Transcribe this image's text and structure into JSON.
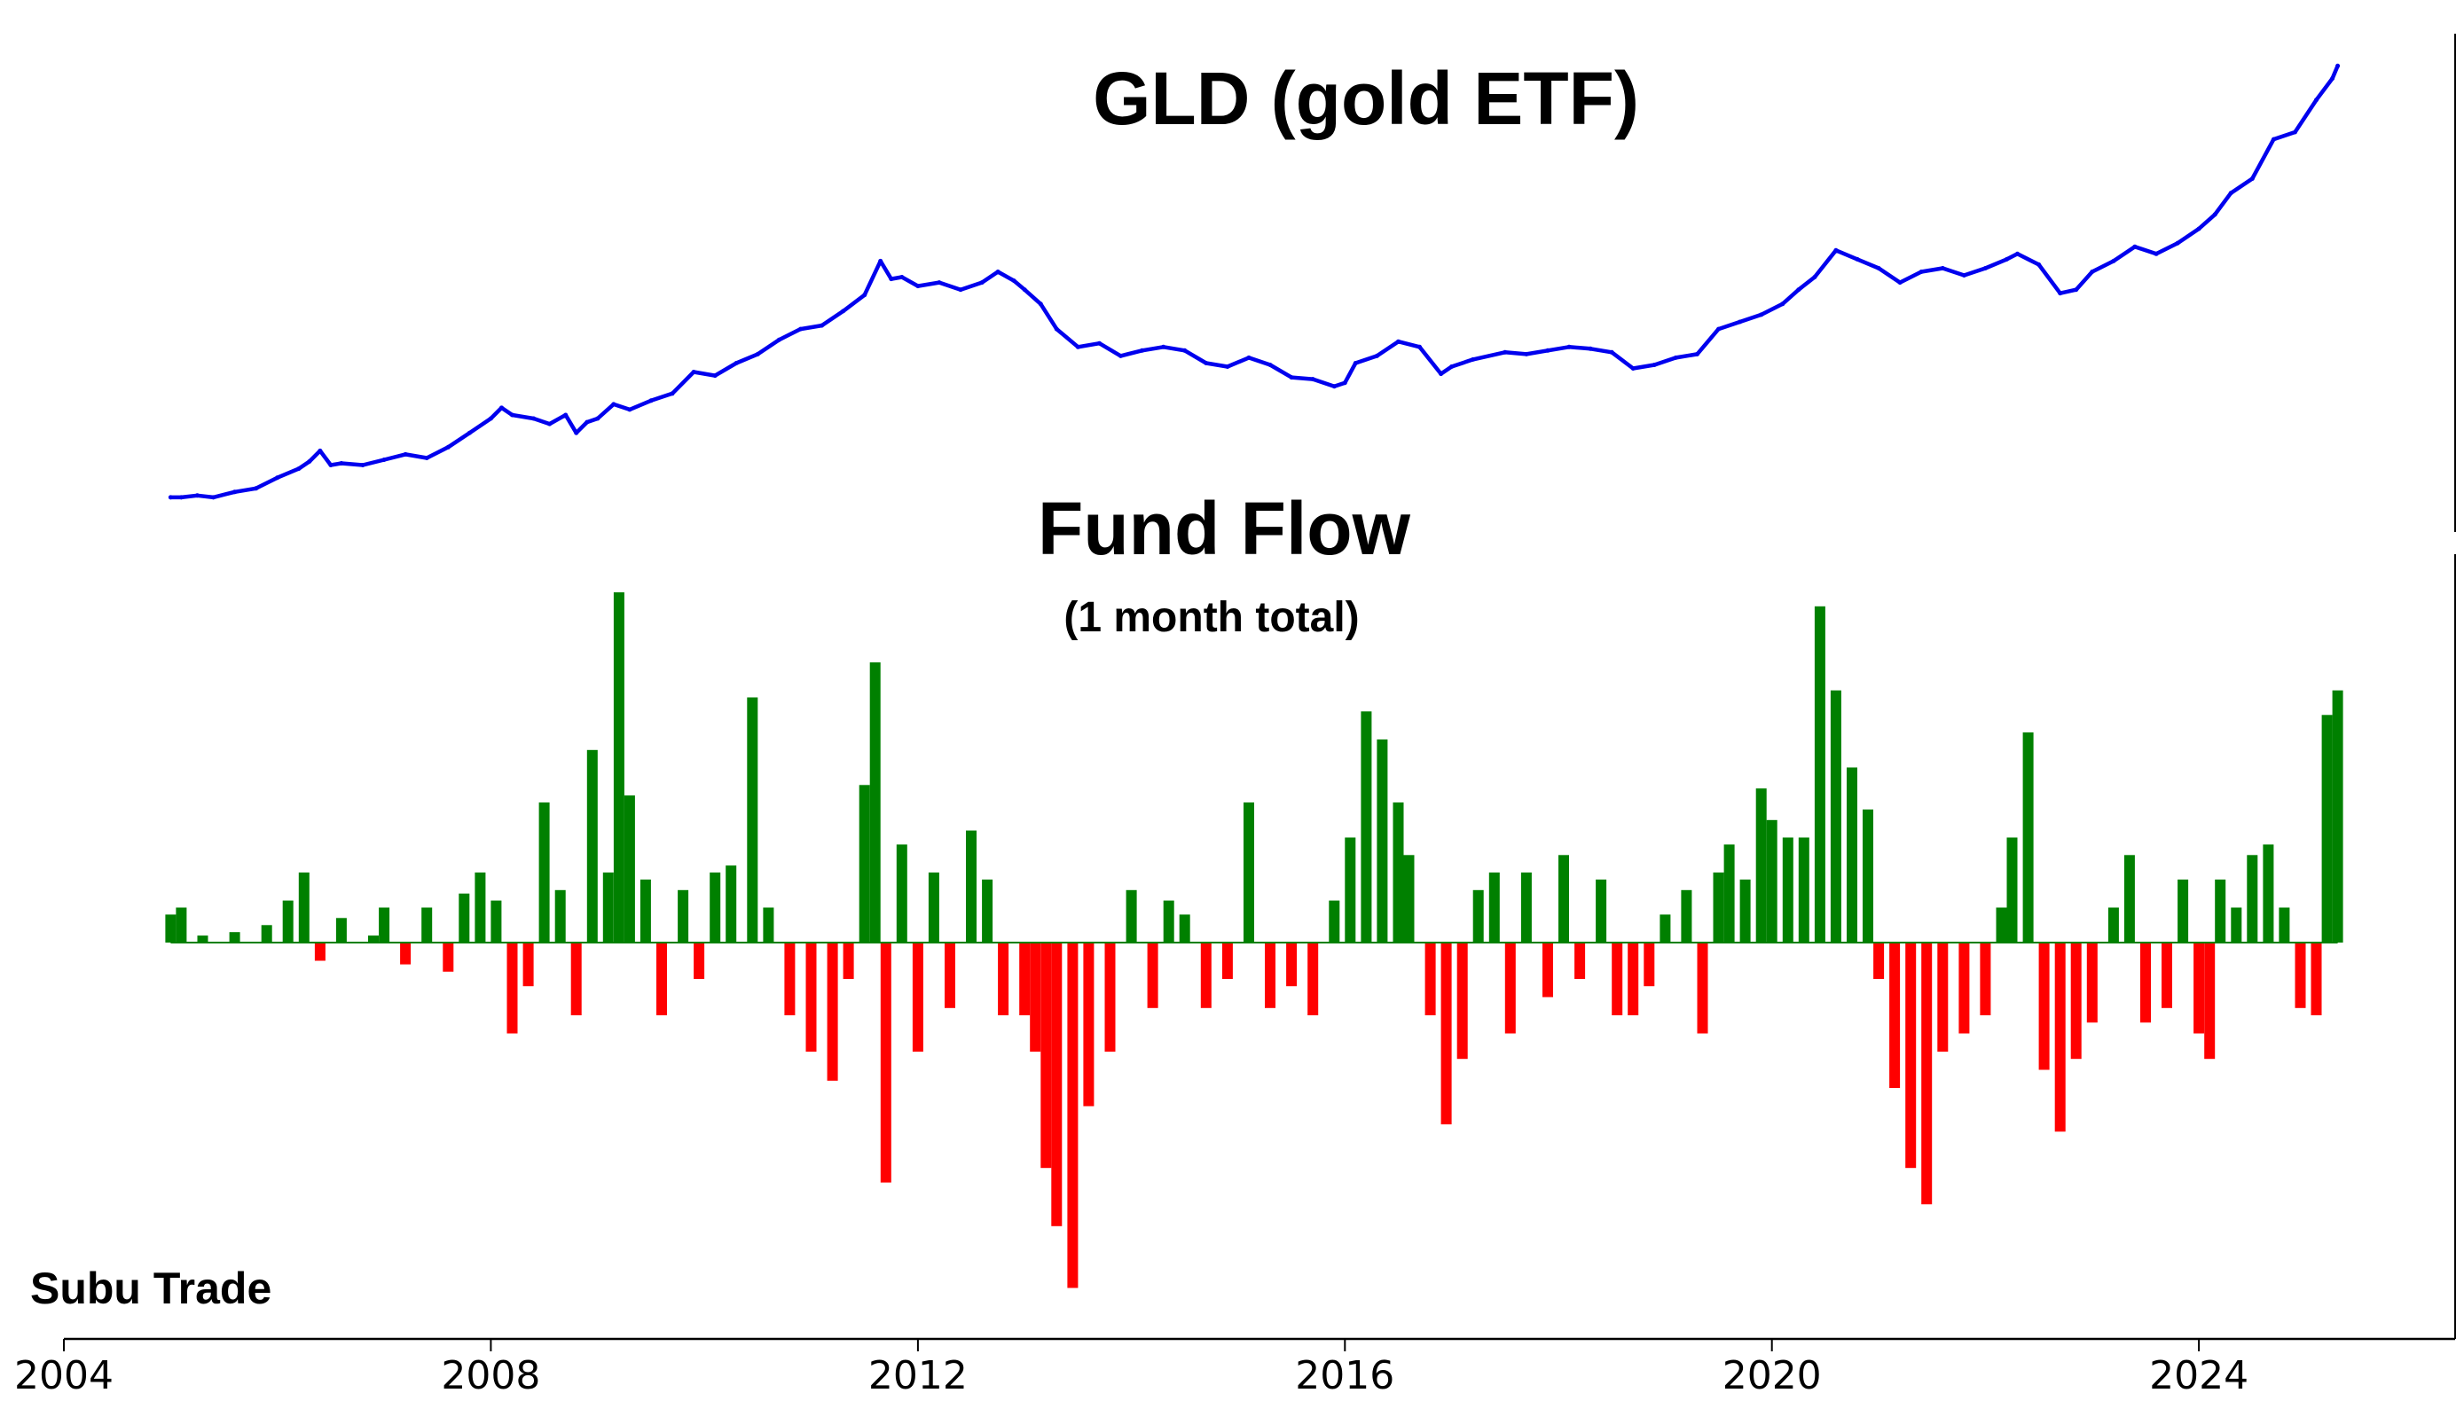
{
  "brand": {
    "label": "Subu Trade"
  },
  "chart_data": [
    {
      "type": "line",
      "title": "GLD (gold ETF)",
      "subtitle": "",
      "xlabel": "",
      "ylabel": "",
      "xlim": [
        2004,
        2026.4
      ],
      "ylim": [
        35,
        300
      ],
      "grid": false,
      "legend": "none",
      "color": "#0000ee",
      "series": [
        {
          "x": [
            2005.0,
            2005.1,
            2005.25,
            2005.4,
            2005.6,
            2005.8,
            2006.0,
            2006.2,
            2006.3,
            2006.4,
            2006.5,
            2006.6,
            2006.8,
            2007.0,
            2007.2,
            2007.4,
            2007.6,
            2007.8,
            2008.0,
            2008.1,
            2008.2,
            2008.4,
            2008.55,
            2008.7,
            2008.8,
            2008.9,
            2009.0,
            2009.15,
            2009.3,
            2009.5,
            2009.7,
            2009.9,
            2010.1,
            2010.3,
            2010.5,
            2010.7,
            2010.9,
            2011.1,
            2011.3,
            2011.5,
            2011.65,
            2011.75,
            2011.85,
            2012.0,
            2012.2,
            2012.4,
            2012.6,
            2012.75,
            2012.9,
            2013.0,
            2013.15,
            2013.3,
            2013.5,
            2013.7,
            2013.9,
            2014.1,
            2014.3,
            2014.5,
            2014.7,
            2014.9,
            2015.1,
            2015.3,
            2015.5,
            2015.7,
            2015.9,
            2016.0,
            2016.1,
            2016.3,
            2016.5,
            2016.7,
            2016.9,
            2017.0,
            2017.2,
            2017.5,
            2017.7,
            2017.9,
            2018.1,
            2018.3,
            2018.5,
            2018.7,
            2018.9,
            2019.1,
            2019.3,
            2019.5,
            2019.7,
            2019.9,
            2020.1,
            2020.25,
            2020.4,
            2020.6,
            2020.8,
            2021.0,
            2021.2,
            2021.4,
            2021.6,
            2021.8,
            2022.0,
            2022.2,
            2022.3,
            2022.5,
            2022.7,
            2022.85,
            2023.0,
            2023.2,
            2023.4,
            2023.6,
            2023.8,
            2024.0,
            2024.15,
            2024.3,
            2024.5,
            2024.7,
            2024.9,
            2025.1,
            2025.25,
            2025.3
          ],
          "y": [
            42,
            42,
            43,
            42,
            45,
            47,
            53,
            58,
            62,
            68,
            60,
            61,
            60,
            63,
            66,
            64,
            70,
            78,
            86,
            92,
            88,
            86,
            83,
            88,
            78,
            84,
            86,
            94,
            91,
            96,
            100,
            112,
            110,
            117,
            122,
            130,
            136,
            138,
            146,
            155,
            174,
            164,
            165,
            160,
            162,
            158,
            162,
            168,
            163,
            158,
            150,
            136,
            126,
            128,
            121,
            124,
            126,
            124,
            117,
            115,
            120,
            116,
            109,
            108,
            104,
            106,
            117,
            121,
            129,
            126,
            111,
            115,
            119,
            123,
            122,
            124,
            126,
            125,
            123,
            114,
            116,
            120,
            122,
            136,
            140,
            144,
            150,
            158,
            165,
            180,
            175,
            170,
            162,
            168,
            170,
            166,
            170,
            175,
            178,
            172,
            156,
            158,
            168,
            174,
            182,
            178,
            184,
            192,
            200,
            212,
            220,
            242,
            246,
            264,
            276,
            283
          ]
        }
      ]
    },
    {
      "type": "bar",
      "title": "Fund Flow",
      "subtitle": "(1 month total)",
      "xlabel": "",
      "ylabel": "",
      "xlim": [
        2004,
        2026.4
      ],
      "xticks": [
        "2004",
        "2008",
        "2012",
        "2016",
        "2020",
        "2024"
      ],
      "ylim": [
        -1.0,
        1.0
      ],
      "grid": false,
      "legend": "none",
      "colors": {
        "positive": "#008000",
        "negative": "#ff0000"
      },
      "series": [
        {
          "x": [
            2005.0,
            2005.1,
            2005.3,
            2005.6,
            2005.9,
            2006.1,
            2006.25,
            2006.4,
            2006.6,
            2006.9,
            2007.0,
            2007.2,
            2007.4,
            2007.6,
            2007.75,
            2007.9,
            2008.05,
            2008.2,
            2008.35,
            2008.5,
            2008.65,
            2008.8,
            2008.95,
            2009.1,
            2009.2,
            2009.3,
            2009.45,
            2009.6,
            2009.8,
            2009.95,
            2010.1,
            2010.25,
            2010.45,
            2010.6,
            2010.8,
            2011.0,
            2011.2,
            2011.35,
            2011.5,
            2011.6,
            2011.7,
            2011.85,
            2012.0,
            2012.15,
            2012.3,
            2012.5,
            2012.65,
            2012.8,
            2013.0,
            2013.1,
            2013.2,
            2013.3,
            2013.45,
            2013.6,
            2013.8,
            2014.0,
            2014.2,
            2014.35,
            2014.5,
            2014.7,
            2014.9,
            2015.1,
            2015.3,
            2015.5,
            2015.7,
            2015.9,
            2016.05,
            2016.2,
            2016.35,
            2016.5,
            2016.6,
            2016.8,
            2016.95,
            2017.1,
            2017.25,
            2017.4,
            2017.55,
            2017.7,
            2017.9,
            2018.05,
            2018.2,
            2018.4,
            2018.55,
            2018.7,
            2018.85,
            2019.0,
            2019.2,
            2019.35,
            2019.5,
            2019.6,
            2019.75,
            2019.9,
            2020.0,
            2020.15,
            2020.3,
            2020.45,
            2020.6,
            2020.75,
            2020.9,
            2021.0,
            2021.15,
            2021.3,
            2021.45,
            2021.6,
            2021.8,
            2022.0,
            2022.15,
            2022.25,
            2022.4,
            2022.55,
            2022.7,
            2022.85,
            2023.0,
            2023.2,
            2023.35,
            2023.5,
            2023.7,
            2023.85,
            2024.0,
            2024.1,
            2024.2,
            2024.35,
            2024.5,
            2024.65,
            2024.8,
            2024.95,
            2025.1,
            2025.2,
            2025.3
          ],
          "values": [
            0.08,
            0.1,
            0.02,
            0.03,
            0.05,
            0.12,
            0.2,
            -0.05,
            0.07,
            0.02,
            0.1,
            -0.06,
            0.1,
            -0.08,
            0.14,
            0.2,
            0.12,
            -0.25,
            -0.12,
            0.4,
            0.15,
            -0.2,
            0.55,
            0.2,
            1.0,
            0.42,
            0.18,
            -0.2,
            0.15,
            -0.1,
            0.2,
            0.22,
            0.7,
            0.1,
            -0.2,
            -0.3,
            -0.38,
            -0.1,
            0.45,
            0.8,
            -0.66,
            0.28,
            -0.3,
            0.2,
            -0.18,
            0.32,
            0.18,
            -0.2,
            -0.2,
            -0.3,
            -0.62,
            -0.78,
            -0.95,
            -0.45,
            -0.3,
            0.15,
            -0.18,
            0.12,
            0.08,
            -0.18,
            -0.1,
            0.4,
            -0.18,
            -0.12,
            -0.2,
            0.12,
            0.3,
            0.66,
            0.58,
            0.4,
            0.25,
            -0.2,
            -0.5,
            -0.32,
            0.15,
            0.2,
            -0.25,
            0.2,
            -0.15,
            0.25,
            -0.1,
            0.18,
            -0.2,
            -0.2,
            -0.12,
            0.08,
            0.15,
            -0.25,
            0.2,
            0.28,
            0.18,
            0.44,
            0.35,
            0.3,
            0.3,
            0.96,
            0.72,
            0.5,
            0.38,
            -0.1,
            -0.4,
            -0.62,
            -0.72,
            -0.3,
            -0.25,
            -0.2,
            0.1,
            0.3,
            0.6,
            -0.35,
            -0.52,
            -0.32,
            -0.22,
            0.1,
            0.25,
            -0.22,
            -0.18,
            0.18,
            -0.25,
            -0.32,
            0.18,
            0.1,
            0.25,
            0.28,
            0.1,
            -0.18,
            -0.2,
            0.65,
            0.72
          ]
        }
      ]
    }
  ]
}
